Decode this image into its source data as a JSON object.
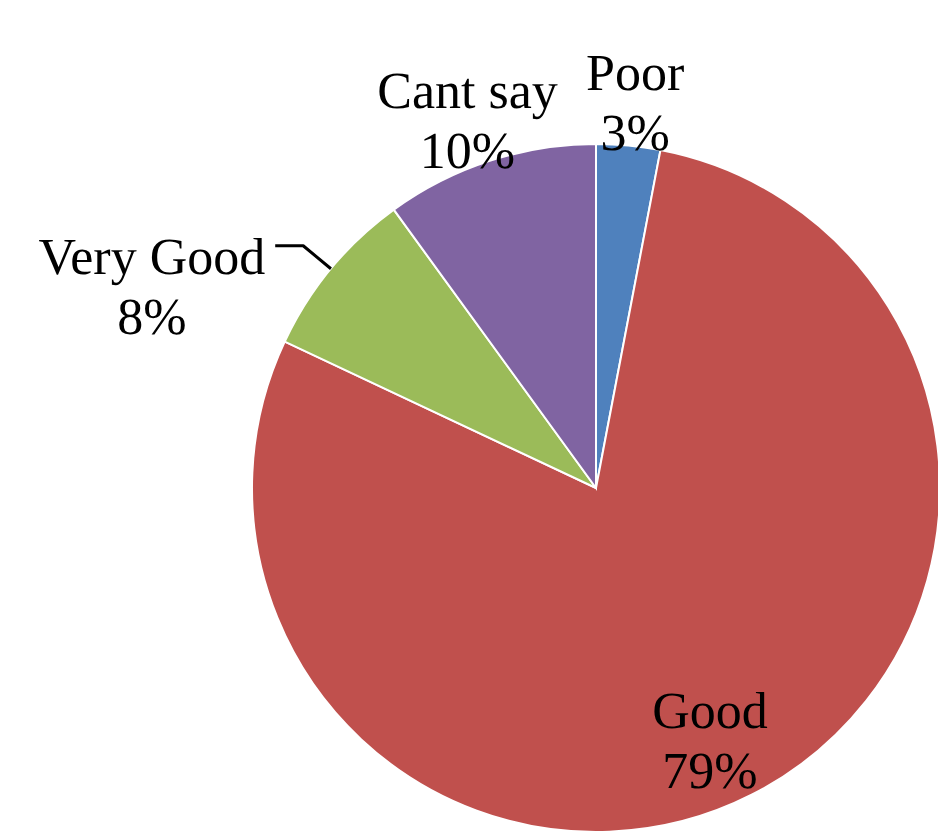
{
  "chart_data": {
    "type": "pie",
    "categories": [
      "Poor",
      "Good",
      "Very Good",
      "Cant say"
    ],
    "values": [
      3,
      79,
      8,
      10
    ],
    "colors": [
      "#4f81bd",
      "#c0504d",
      "#9bbb59",
      "#8064a2"
    ],
    "value_labels": [
      "3%",
      "79%",
      "8%",
      "10%"
    ]
  }
}
